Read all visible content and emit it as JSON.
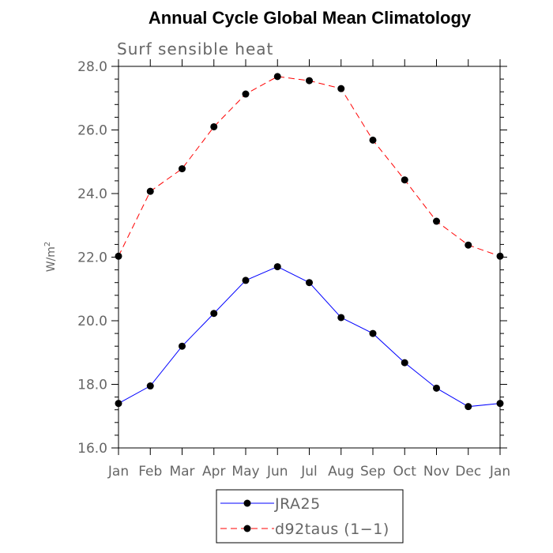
{
  "chart_data": {
    "type": "line",
    "title": "Annual Cycle Global Mean Climatology",
    "subtitle": "Surf sensible heat",
    "ylabel_base": "W/m",
    "ylabel_sup": "2",
    "categories": [
      "Jan",
      "Feb",
      "Mar",
      "Apr",
      "May",
      "Jun",
      "Jul",
      "Aug",
      "Sep",
      "Oct",
      "Nov",
      "Dec",
      "Jan"
    ],
    "ylim": [
      16.0,
      28.0
    ],
    "yticks": [
      "16.0",
      "18.0",
      "20.0",
      "22.0",
      "24.0",
      "26.0",
      "28.0"
    ],
    "series": [
      {
        "name": "JRA25",
        "color": "#0000ff",
        "dashed": false,
        "values": [
          17.4,
          17.95,
          19.2,
          20.23,
          21.27,
          21.7,
          21.2,
          20.1,
          19.6,
          18.68,
          17.88,
          17.3,
          17.4
        ]
      },
      {
        "name": "d92taus (1−1)",
        "color": "#ff0000",
        "dashed": true,
        "values": [
          22.03,
          24.07,
          24.78,
          26.1,
          27.13,
          27.68,
          27.55,
          27.3,
          25.68,
          24.43,
          23.13,
          22.38,
          22.03
        ]
      }
    ],
    "grid": false,
    "legend_position": "bottom"
  }
}
